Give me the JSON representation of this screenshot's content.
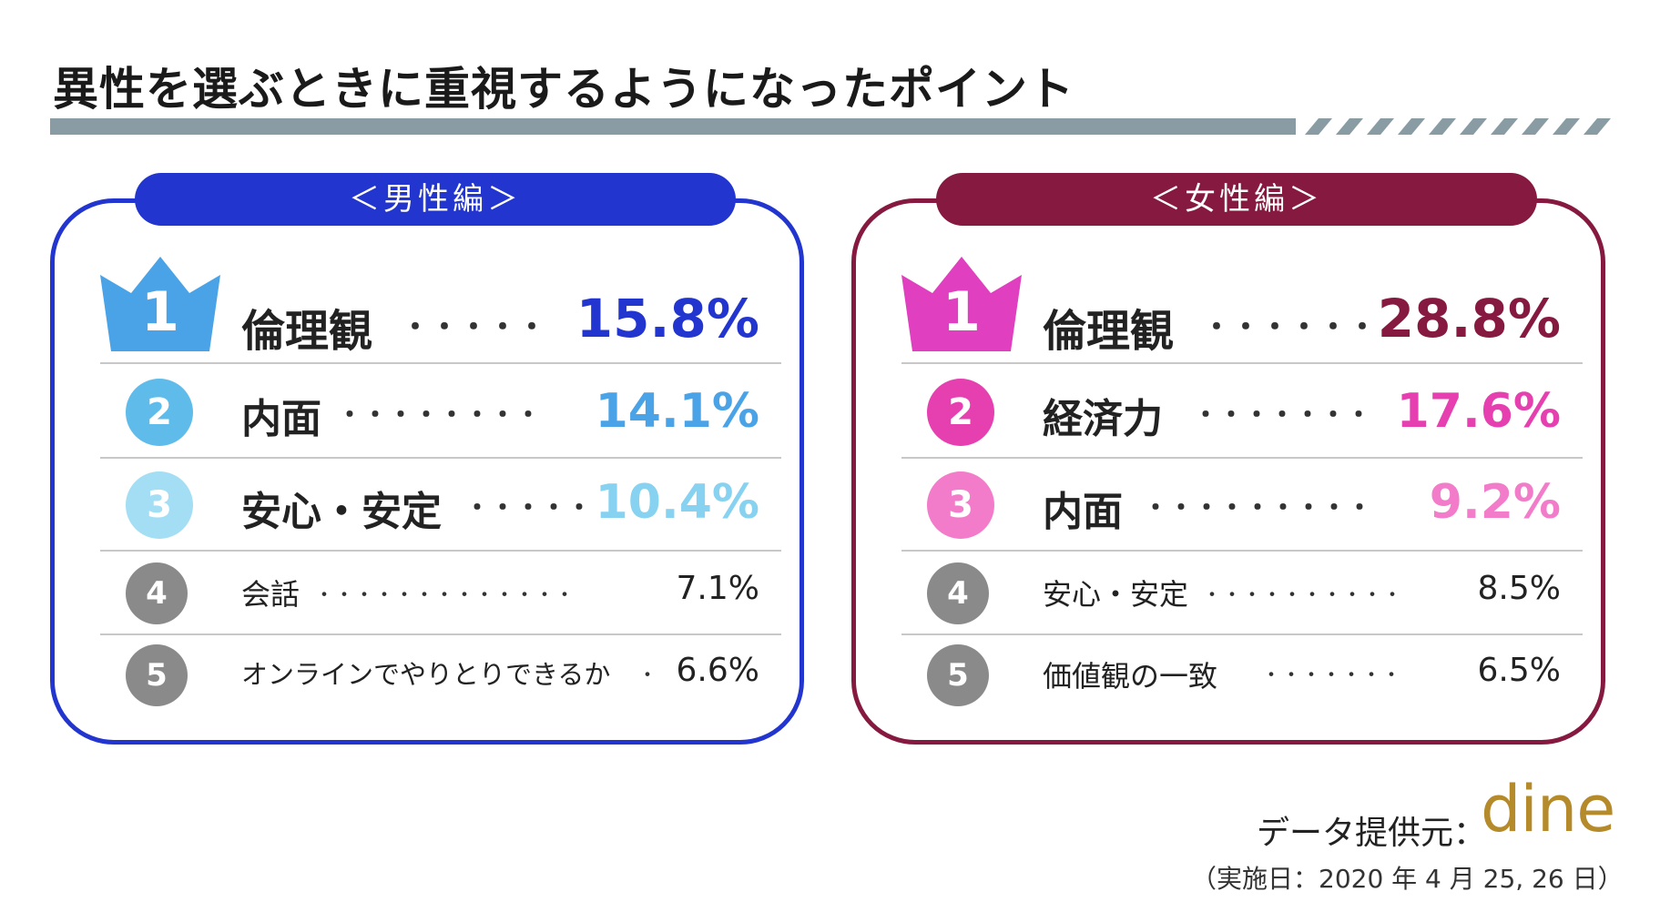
{
  "title": "異性を選ぶときに重視するようになったポイント",
  "male": {
    "tab": "＜男性編＞",
    "items": [
      {
        "rank": "1",
        "label": "倫理観",
        "dots": "・・・・・",
        "value": "15.8%",
        "color": "#2235cf"
      },
      {
        "rank": "2",
        "label": "内面",
        "dots": "・・・・・・・・",
        "value": "14.1%",
        "color": "#4aa3e6"
      },
      {
        "rank": "3",
        "label": "安心・安定",
        "dots": "・・・・・",
        "value": "10.4%",
        "color": "#86d2f0"
      },
      {
        "rank": "4",
        "label": "会話",
        "dots": "・・・・・・・・・・・・・",
        "value": "7.1%"
      },
      {
        "rank": "5",
        "label": "オンラインでやりとりできるか",
        "dots": "・",
        "value": "6.6%"
      }
    ]
  },
  "female": {
    "tab": "＜女性編＞",
    "items": [
      {
        "rank": "1",
        "label": "倫理観",
        "dots": "・・・・・・",
        "value": "28.8%",
        "color": "#86193f"
      },
      {
        "rank": "2",
        "label": "経済力",
        "dots": "・・・・・・・",
        "value": "17.6%",
        "color": "#e53fb0"
      },
      {
        "rank": "3",
        "label": "内面",
        "dots": "・・・・・・・・・",
        "value": "9.2%",
        "color": "#f27cc9"
      },
      {
        "rank": "4",
        "label": "安心・安定",
        "dots": "・・・・・・・・・・",
        "value": "8.5%"
      },
      {
        "rank": "5",
        "label": "価値観の一致",
        "dots": "・・・・・・・",
        "value": "6.5%"
      }
    ]
  },
  "credit": "データ提供元：",
  "brand": "dine",
  "date": "（実施日：2020 年 4 月 25, 26 日）",
  "colors": {
    "male_accent": "#2235cf",
    "female_accent": "#86193f",
    "male_crown": "#4aa3e6",
    "female_crown": "#e03fbf",
    "rank_gray": "#8a8a8a",
    "rule": "#8a9ca3"
  }
}
